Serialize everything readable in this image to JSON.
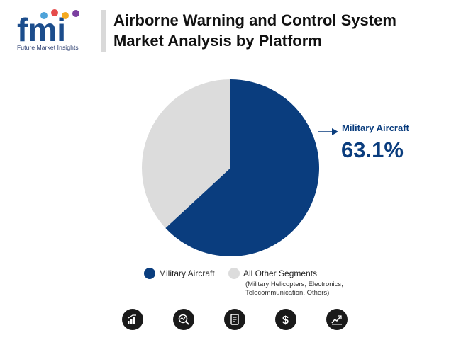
{
  "header": {
    "logo_text": "Future Market Insights",
    "title_line1": "Airborne Warning and Control System",
    "title_line2": "Market Analysis by Platform"
  },
  "chart_data": {
    "type": "pie",
    "slices": [
      {
        "label": "Military Aircraft",
        "value": 63.1,
        "color": "#0a3d7e"
      },
      {
        "label": "All Other Segments",
        "value": 36.9,
        "color": "#dcdcdc"
      }
    ],
    "callout": {
      "label": "Military Aircraft",
      "value": "63.1%"
    },
    "legend": [
      {
        "label": "Military Aircraft",
        "color": "#0a3d7e"
      },
      {
        "label": "All Other Segments",
        "color": "#dcdcdc",
        "sub_line1": "(Military Helicopters, Electronics,",
        "sub_line2": "Telecommunication, Others)"
      }
    ]
  },
  "footer_icons": [
    "bar-growth-icon",
    "magnifier-chart-icon",
    "document-icon",
    "dollar-icon",
    "trend-line-icon"
  ]
}
